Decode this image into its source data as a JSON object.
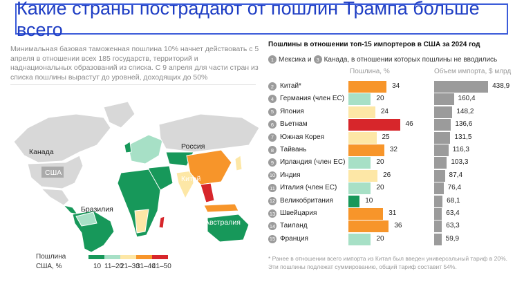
{
  "title": "Какие страны пострадают от пошлин Трампа больше всего",
  "intro": "Минимальная базовая таможенная пошлина 10% начнет действовать с 5 апреля в отношении всех 185 государств, территорий и наднациональных образований из списка. С 9 апреля для части стран из списка пошлины вырастут до уровней, доходящих до 50%",
  "map_labels": {
    "canada": "Канада",
    "usa": "США",
    "russia": "Россия",
    "china": "Китай",
    "brazil": "Бразилия",
    "australia": "Австралия"
  },
  "legend": {
    "title_1": "Пошлина",
    "title_2": "США, %",
    "bins": [
      {
        "label": "10",
        "color": "#17985a"
      },
      {
        "label": "11–20",
        "color": "#a7e0c6"
      },
      {
        "label": "21–30",
        "color": "#fde7a6"
      },
      {
        "label": "31–40",
        "color": "#f7952a"
      },
      {
        "label": "41–50",
        "color": "#d7262b"
      }
    ]
  },
  "chart_data": {
    "type": "bar",
    "title": "Пошлины в отношении топ-15 импортеров в США за 2024 год",
    "subtitle": {
      "n1": "1",
      "t1": "Мексика и",
      "n2": "3",
      "t2": "Канада, в отношении которых пошлины не вводились"
    },
    "col_tariff": "Пошлина, %",
    "col_import": "Объем импорта, $ млрд",
    "rows": [
      {
        "rank": "2",
        "country": "Китай*",
        "tariff": 34,
        "import": "438,9",
        "iv": 438.9,
        "color": "#f7952a"
      },
      {
        "rank": "4",
        "country": "Германия (член ЕС)",
        "tariff": 20,
        "import": "160,4",
        "iv": 160.4,
        "color": "#a7e0c6"
      },
      {
        "rank": "5",
        "country": "Япония",
        "tariff": 24,
        "import": "148,2",
        "iv": 148.2,
        "color": "#fde7a6"
      },
      {
        "rank": "6",
        "country": "Вьетнам",
        "tariff": 46,
        "import": "136,6",
        "iv": 136.6,
        "color": "#d7262b"
      },
      {
        "rank": "7",
        "country": "Южная Корея",
        "tariff": 25,
        "import": "131,5",
        "iv": 131.5,
        "color": "#fde7a6"
      },
      {
        "rank": "8",
        "country": "Тайвань",
        "tariff": 32,
        "import": "116,3",
        "iv": 116.3,
        "color": "#f7952a"
      },
      {
        "rank": "9",
        "country": "Ирландия (член ЕС)",
        "tariff": 20,
        "import": "103,3",
        "iv": 103.3,
        "color": "#a7e0c6"
      },
      {
        "rank": "10",
        "country": "Индия",
        "tariff": 26,
        "import": "87,4",
        "iv": 87.4,
        "color": "#fde7a6"
      },
      {
        "rank": "11",
        "country": "Италия (член ЕС)",
        "tariff": 20,
        "import": "76,4",
        "iv": 76.4,
        "color": "#a7e0c6"
      },
      {
        "rank": "12",
        "country": "Великобритания",
        "tariff": 10,
        "import": "68,1",
        "iv": 68.1,
        "color": "#17985a"
      },
      {
        "rank": "13",
        "country": "Швейцария",
        "tariff": 31,
        "import": "63,4",
        "iv": 63.4,
        "color": "#f7952a"
      },
      {
        "rank": "14",
        "country": "Таиланд",
        "tariff": 36,
        "import": "63,3",
        "iv": 63.3,
        "color": "#f7952a"
      },
      {
        "rank": "15",
        "country": "Франция",
        "tariff": 20,
        "import": "59,9",
        "iv": 59.9,
        "color": "#a7e0c6"
      }
    ]
  },
  "footnote_1": "* Ранее в отношении всего импорта из Китая был введен универсальный тариф в 20%.",
  "footnote_2": "Эти пошлины подлежат суммированию, общий тариф составит 54%."
}
